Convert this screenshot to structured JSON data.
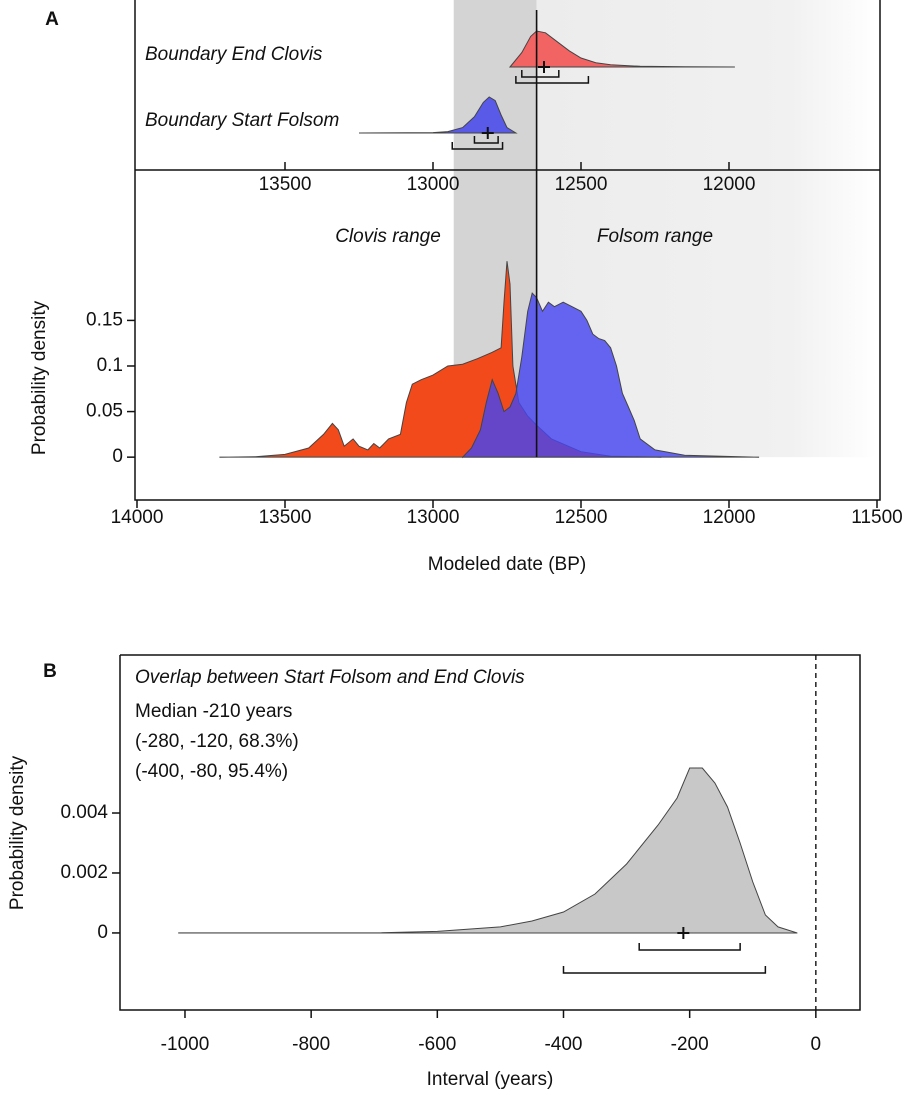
{
  "chart_data": [
    {
      "type": "area",
      "panel_label": "A",
      "xlim": [
        14000,
        11500
      ],
      "xticks": [
        14000,
        13500,
        13000,
        12500,
        12000,
        11500
      ],
      "inset_xticks": [
        13500,
        13000,
        12500,
        12000
      ],
      "ylim": [
        -0.047,
        0.315
      ],
      "yticks": [
        0,
        0.05,
        0.1,
        0.15
      ],
      "xlabel": "Modeled date (BP)",
      "ylabel": "Probability density",
      "vline": 12650,
      "shade": [
        12930,
        12650
      ],
      "boundaries": [
        {
          "name": "Boundary End Clovis",
          "color": "#f26464",
          "x": [
            12740,
            12700,
            12670,
            12650,
            12620,
            12580,
            12540,
            12500,
            12450,
            12400,
            12300,
            12150,
            11980
          ],
          "values": [
            0,
            0.4,
            0.85,
            1,
            0.95,
            0.7,
            0.45,
            0.25,
            0.12,
            0.06,
            0.02,
            0.005,
            0
          ],
          "median": 12625,
          "range_68": [
            12700,
            12575
          ],
          "range_95": [
            12720,
            12475
          ]
        },
        {
          "name": "Boundary Start Folsom",
          "color": "#5a5ae8",
          "x": [
            13250,
            13000,
            12950,
            12900,
            12860,
            12830,
            12810,
            12790,
            12770,
            12750,
            12720
          ],
          "values": [
            0,
            0.01,
            0.04,
            0.15,
            0.45,
            0.85,
            1,
            0.9,
            0.5,
            0.15,
            0
          ],
          "median": 12815,
          "range_68": [
            12860,
            12780
          ],
          "range_95": [
            12935,
            12765
          ]
        }
      ],
      "series": [
        {
          "name": "Clovis range",
          "color": "#f24a1a",
          "x": [
            13720,
            13600,
            13500,
            13420,
            13370,
            13340,
            13320,
            13300,
            13270,
            13250,
            13220,
            13200,
            13180,
            13150,
            13110,
            13090,
            13070,
            13040,
            13000,
            12950,
            12900,
            12850,
            12800,
            12770,
            12760,
            12750,
            12740,
            12730,
            12710,
            12680,
            12650,
            12600,
            12500,
            12400,
            12230
          ],
          "values": [
            0,
            0.0005,
            0.003,
            0.01,
            0.025,
            0.037,
            0.03,
            0.012,
            0.02,
            0.012,
            0.008,
            0.015,
            0.01,
            0.02,
            0.025,
            0.06,
            0.08,
            0.085,
            0.09,
            0.1,
            0.102,
            0.108,
            0.115,
            0.12,
            0.17,
            0.215,
            0.19,
            0.1,
            0.06,
            0.045,
            0.035,
            0.02,
            0.006,
            0.001,
            0
          ]
        },
        {
          "name": "Folsom range",
          "color": "#4646f0",
          "x": [
            12900,
            12870,
            12840,
            12820,
            12800,
            12780,
            12760,
            12740,
            12720,
            12700,
            12680,
            12665,
            12650,
            12630,
            12610,
            12590,
            12560,
            12530,
            12500,
            12480,
            12460,
            12440,
            12420,
            12400,
            12380,
            12360,
            12340,
            12320,
            12300,
            12250,
            12150,
            11900
          ],
          "values": [
            0,
            0.01,
            0.03,
            0.06,
            0.085,
            0.07,
            0.05,
            0.055,
            0.07,
            0.11,
            0.16,
            0.18,
            0.175,
            0.16,
            0.17,
            0.165,
            0.17,
            0.165,
            0.16,
            0.15,
            0.135,
            0.13,
            0.128,
            0.12,
            0.1,
            0.07,
            0.055,
            0.04,
            0.02,
            0.008,
            0.002,
            0
          ]
        }
      ]
    },
    {
      "type": "area",
      "panel_label": "B",
      "title": "Overlap between Start Folsom and End Clovis",
      "annotations": [
        "Median -210 years",
        "(-280, -120, 68.3%)",
        "(-400, -80, 95.4%)"
      ],
      "xlim": [
        -1103,
        70
      ],
      "xticks": [
        -1000,
        -800,
        -600,
        -400,
        -200,
        0
      ],
      "ylim": [
        -0.00257,
        0.00927
      ],
      "yticks": [
        0,
        0.002,
        0.004
      ],
      "xlabel": "Interval (years)",
      "ylabel": "Probability density",
      "vline": 0,
      "median": -210,
      "range_68": [
        -280,
        -120
      ],
      "range_95": [
        -400,
        -80
      ],
      "series": [
        {
          "color": "#c8c8c8",
          "x": [
            -1010,
            -700,
            -600,
            -500,
            -450,
            -400,
            -350,
            -300,
            -250,
            -220,
            -200,
            -180,
            -160,
            -140,
            -120,
            -100,
            -80,
            -60,
            -30
          ],
          "values": [
            0,
            0,
            5e-05,
            0.0002,
            0.0004,
            0.0007,
            0.0013,
            0.0023,
            0.0036,
            0.0045,
            0.0055,
            0.0055,
            0.005,
            0.0042,
            0.003,
            0.0017,
            0.0006,
            0.0002,
            0
          ]
        }
      ]
    }
  ]
}
